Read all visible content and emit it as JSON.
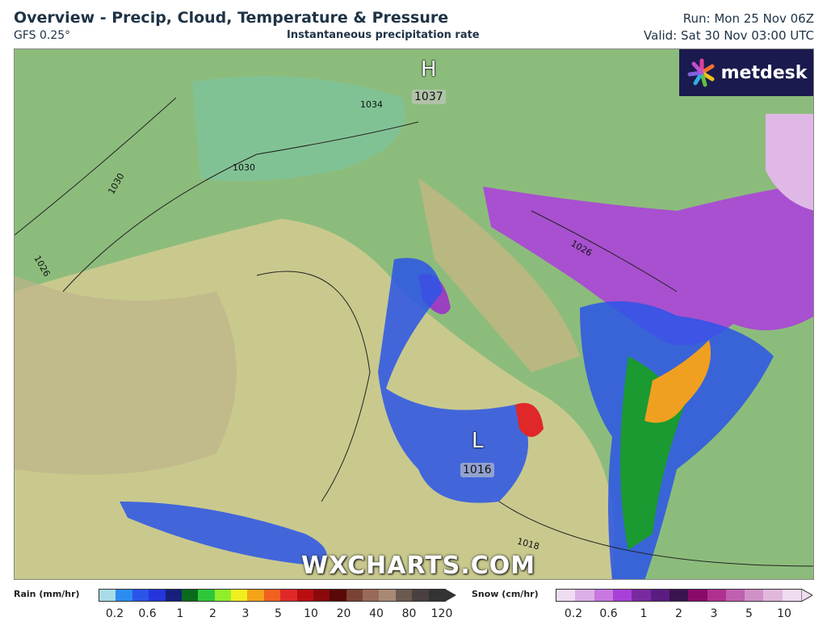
{
  "header": {
    "title": "Overview - Precip, Cloud, Temperature & Pressure",
    "model": "GFS 0.25°",
    "subtitle": "Instantaneous precipitation rate",
    "run": "Run: Mon 25 Nov 06Z",
    "valid": "Valid: Sat 30 Nov 03:00 UTC"
  },
  "logo": {
    "text": "metdesk"
  },
  "watermark": "WXCHARTS.COM",
  "pressure": {
    "high_letter": "H",
    "high_value": "1037",
    "low_letter": "L",
    "low_value": "1016",
    "isobars": [
      "1034",
      "1030",
      "1030",
      "1026",
      "1026",
      "1018"
    ]
  },
  "legend": {
    "rain": {
      "label": "Rain (mm/hr)",
      "ticks": [
        "0.2",
        "0.6",
        "1",
        "2",
        "3",
        "5",
        "10",
        "20",
        "40",
        "80",
        "120"
      ],
      "colors": [
        "#a8dce6",
        "#2d8cf0",
        "#2a55e8",
        "#2435dc",
        "#16207a",
        "#0a6a1e",
        "#2ec83a",
        "#90ee2a",
        "#f0f020",
        "#f5a418",
        "#f06020",
        "#e02828",
        "#b80e10",
        "#8a0a0a",
        "#5a0808",
        "#7a4232",
        "#9a6a58",
        "#a88a74",
        "#6a5a50",
        "#4a4040",
        "#333"
      ]
    },
    "snow": {
      "label": "Snow (cm/hr)",
      "ticks": [
        "0.2",
        "0.6",
        "1",
        "2",
        "3",
        "5",
        "10"
      ],
      "colors": [
        "#f0dcf0",
        "#dcb0e6",
        "#c878e0",
        "#a840d8",
        "#7a2aa0",
        "#5a1c80",
        "#3a1450",
        "#8a0a6a",
        "#b03090",
        "#c060b0",
        "#d090c8",
        "#e0b8dc",
        "#f0dcf0"
      ]
    }
  }
}
